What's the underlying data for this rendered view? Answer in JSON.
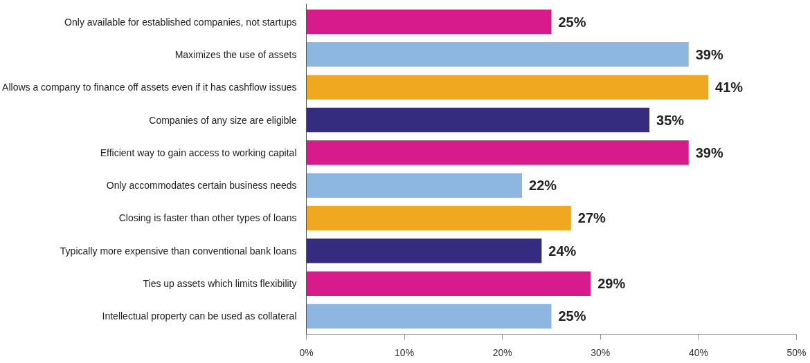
{
  "chart_data": {
    "type": "bar",
    "orientation": "horizontal",
    "categories": [
      "Only available for established companies, not startups",
      "Maximizes the use of assets",
      "Allows a company to finance off assets even if it has cashflow issues",
      "Companies of any size are eligible",
      "Efficient way to gain access to working capital",
      "Only accommodates certain business needs",
      "Closing is faster than other types of loans",
      "Typically more expensive than conventional bank loans",
      "Ties up assets which limits flexibility",
      "Intellectual property can be used as collateral"
    ],
    "values": [
      25,
      39,
      41,
      35,
      39,
      22,
      27,
      24,
      29,
      25
    ],
    "colors": [
      "#d81b8c",
      "#8db6e0",
      "#f0a820",
      "#352c80",
      "#d81b8c",
      "#8db6e0",
      "#f0a820",
      "#352c80",
      "#d81b8c",
      "#8db6e0"
    ],
    "value_labels": [
      "25%",
      "39%",
      "41%",
      "35%",
      "39%",
      "22%",
      "27%",
      "24%",
      "29%",
      "25%"
    ],
    "xlim": [
      0,
      50
    ],
    "xticks": [
      {
        "value": 0,
        "label": "0%"
      },
      {
        "value": 10,
        "label": "10%"
      },
      {
        "value": 20,
        "label": "20%"
      },
      {
        "value": 30,
        "label": "30%"
      },
      {
        "value": 40,
        "label": "40%"
      },
      {
        "value": 50,
        "label": "50%"
      }
    ],
    "grid": false
  }
}
